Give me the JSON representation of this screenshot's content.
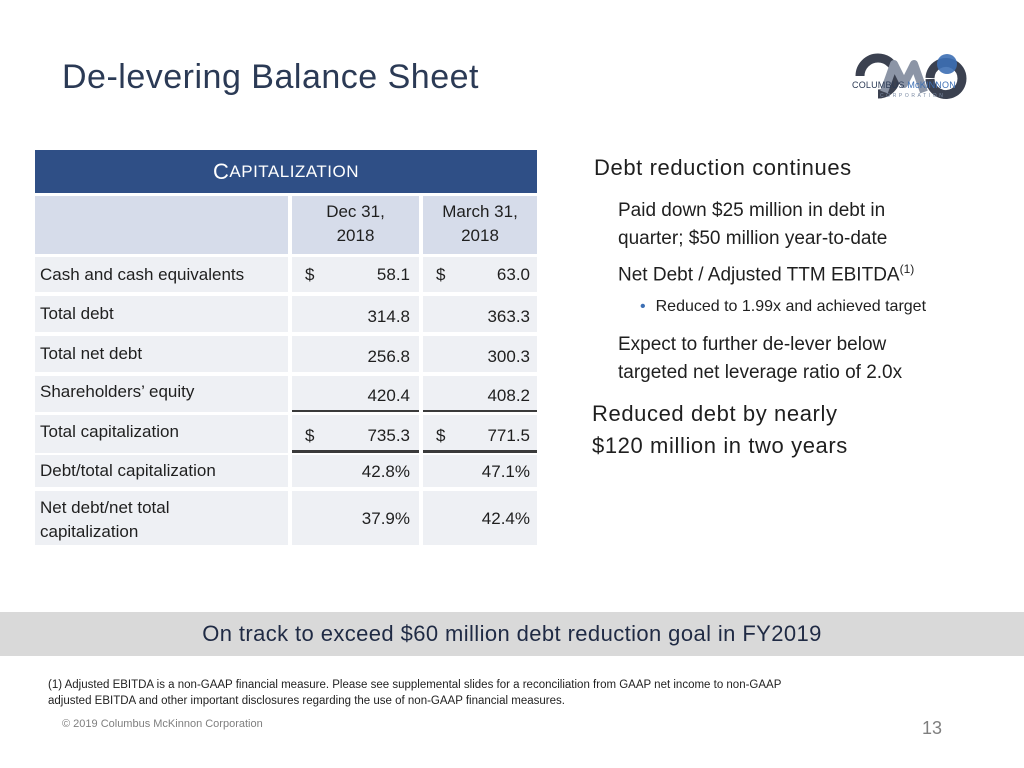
{
  "slide": {
    "title": "De-levering Balance Sheet",
    "page_number": "13",
    "copyright": "© 2019 Columbus McKinnon Corporation"
  },
  "logo": {
    "word1": "COLUMBUS",
    "word2": "McKINNON",
    "sub": "CORPORATION",
    "colors": {
      "dark": "#3b4150",
      "blue": "#3d6fb4",
      "mid": "#8c95a6"
    }
  },
  "table": {
    "header_first": "C",
    "header_rest": "APITALIZATION",
    "col1_header_line1": "Dec 31,",
    "col1_header_line2": "2018",
    "col2_header_line1": "March 31,",
    "col2_header_line2": "2018",
    "rows": [
      {
        "label": "Cash and cash equivalents",
        "c1_sym": "$",
        "c1": "58.1",
        "c2_sym": "$",
        "c2": "63.0"
      },
      {
        "label": "Total debt",
        "c1_sym": "",
        "c1": "314.8",
        "c2_sym": "",
        "c2": "363.3"
      },
      {
        "label": "Total net debt",
        "c1_sym": "",
        "c1": "256.8",
        "c2_sym": "",
        "c2": "300.3"
      },
      {
        "label": "Shareholders’ equity",
        "c1_sym": "",
        "c1": "420.4",
        "c2_sym": "",
        "c2": "408.2"
      },
      {
        "label": "Total capitalization",
        "c1_sym": "$",
        "c1": "735.3",
        "c2_sym": "$",
        "c2": "771.5"
      },
      {
        "label": "Debt/total capitalization",
        "c1_sym": "",
        "c1": "42.8%",
        "c2_sym": "",
        "c2": "47.1%"
      },
      {
        "label_line1": "Net debt/net total",
        "label_line2": "capitalization",
        "c1_sym": "",
        "c1": "37.9%",
        "c2_sym": "",
        "c2": "42.4%"
      }
    ]
  },
  "right": {
    "heading1": "Debt reduction continues",
    "p1_line1": "Paid down $25 million in debt in",
    "p1_line2": "quarter; $50 million year-to-date",
    "p2": "Net Debt / Adjusted TTM EBITDA",
    "p2_sup": "(1)",
    "bullet1": "Reduced to 1.99x and achieved target",
    "p3_line1": "Expect to further de-lever below",
    "p3_line2": "targeted net leverage ratio of 2.0x",
    "heading2_line1": "Reduced debt by nearly",
    "heading2_line2": "$120 million in two years"
  },
  "banner": "On track to exceed $60 million debt reduction goal in FY2019",
  "footnote_line1": "(1) Adjusted EBITDA is a non-GAAP financial measure.  Please see supplemental slides for a reconciliation from GAAP net income to non-GAAP",
  "footnote_line2": "adjusted EBITDA and other important disclosures regarding the use of non-GAAP financial measures."
}
